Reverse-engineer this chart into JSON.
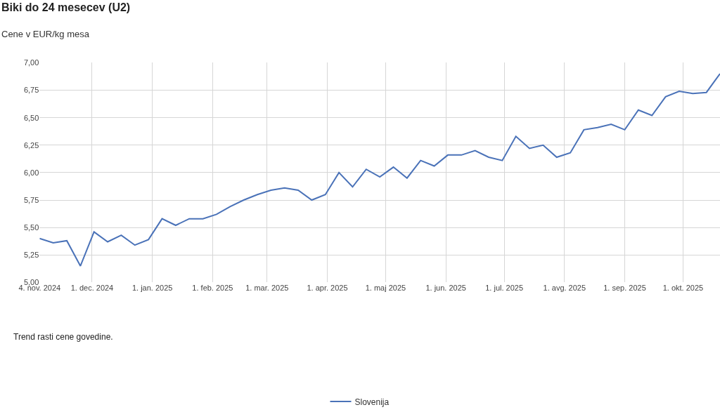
{
  "chart_data": {
    "type": "line",
    "title": "Biki do 24 mesecev (U2)",
    "ylabel": "Cene v EUR/kg mesa",
    "x": [
      "2024-11-04",
      "2024-11-11",
      "2024-11-18",
      "2024-11-25",
      "2024-12-02",
      "2024-12-09",
      "2024-12-16",
      "2024-12-23",
      "2024-12-30",
      "2025-01-06",
      "2025-01-13",
      "2025-01-20",
      "2025-01-27",
      "2025-02-03",
      "2025-02-10",
      "2025-02-17",
      "2025-02-24",
      "2025-03-03",
      "2025-03-10",
      "2025-03-17",
      "2025-03-24",
      "2025-03-31",
      "2025-04-07",
      "2025-04-14",
      "2025-04-21",
      "2025-04-28",
      "2025-05-05",
      "2025-05-12",
      "2025-05-19",
      "2025-05-26",
      "2025-06-02",
      "2025-06-09",
      "2025-06-16",
      "2025-06-23",
      "2025-06-30",
      "2025-07-07",
      "2025-07-14",
      "2025-07-21",
      "2025-07-28",
      "2025-08-04",
      "2025-08-11",
      "2025-08-18",
      "2025-08-25",
      "2025-09-01",
      "2025-09-08",
      "2025-09-15",
      "2025-09-22",
      "2025-09-29",
      "2025-10-06",
      "2025-10-13",
      "2025-10-20"
    ],
    "series": [
      {
        "name": "Slovenija",
        "color": "#4a72b8",
        "values": [
          5.4,
          5.36,
          5.38,
          5.15,
          5.46,
          5.37,
          5.43,
          5.34,
          5.39,
          5.58,
          5.52,
          5.58,
          5.58,
          5.62,
          5.69,
          5.75,
          5.8,
          5.84,
          5.86,
          5.84,
          5.75,
          5.8,
          6.0,
          5.87,
          6.03,
          5.96,
          6.05,
          5.95,
          6.11,
          6.06,
          6.16,
          6.16,
          6.2,
          6.14,
          6.11,
          6.33,
          6.22,
          6.25,
          6.14,
          6.18,
          6.39,
          6.41,
          6.44,
          6.39,
          6.57,
          6.52,
          6.69,
          6.74,
          6.72,
          6.73,
          6.9
        ]
      }
    ],
    "xlim": [
      "2024-11-04",
      "2025-10-20"
    ],
    "xticks": [
      {
        "value": "2024-11-04",
        "label": "4. nov. 2024"
      },
      {
        "value": "2024-12-01",
        "label": "1. dec. 2024"
      },
      {
        "value": "2025-01-01",
        "label": "1. jan. 2025"
      },
      {
        "value": "2025-02-01",
        "label": "1. feb. 2025"
      },
      {
        "value": "2025-03-01",
        "label": "1. mar. 2025"
      },
      {
        "value": "2025-04-01",
        "label": "1. apr. 2025"
      },
      {
        "value": "2025-05-01",
        "label": "1. maj 2025"
      },
      {
        "value": "2025-06-01",
        "label": "1. jun. 2025"
      },
      {
        "value": "2025-07-01",
        "label": "1. jul. 2025"
      },
      {
        "value": "2025-08-01",
        "label": "1. avg. 2025"
      },
      {
        "value": "2025-09-01",
        "label": "1. sep. 2025"
      },
      {
        "value": "2025-10-01",
        "label": "1. okt. 2025"
      }
    ],
    "ylim": [
      5.0,
      7.0
    ],
    "yticks": [
      {
        "value": 5.0,
        "label": "5,00"
      },
      {
        "value": 5.25,
        "label": "5,25"
      },
      {
        "value": 5.5,
        "label": "5,50"
      },
      {
        "value": 5.75,
        "label": "5,75"
      },
      {
        "value": 6.0,
        "label": "6,00"
      },
      {
        "value": 6.25,
        "label": "6,25"
      },
      {
        "value": 6.5,
        "label": "6,50"
      },
      {
        "value": 6.75,
        "label": "6,75"
      },
      {
        "value": 7.0,
        "label": "7,00"
      }
    ],
    "grid": true,
    "legend": "bottom",
    "marker": "none",
    "line_style": "solid",
    "annotations": [
      "Trend rasti cene govedine."
    ]
  }
}
